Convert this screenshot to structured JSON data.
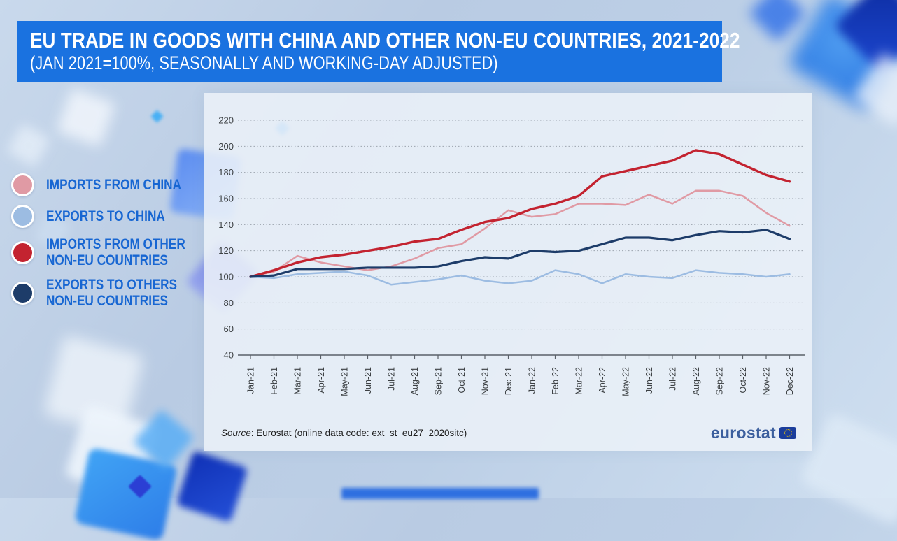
{
  "header": {
    "title": "EU TRADE IN GOODS WITH CHINA AND OTHER NON-EU COUNTRIES, 2021-2022",
    "subtitle": "(JAN 2021=100%, SEASONALLY AND WORKING-DAY ADJUSTED)",
    "bar_color": "#1a72e0"
  },
  "legend": {
    "text_color": "#1766d2",
    "items": [
      {
        "lines": [
          "IMPORTS FROM CHINA"
        ]
      },
      {
        "lines": [
          "EXPORTS TO CHINA"
        ]
      },
      {
        "lines": [
          "IMPORTS FROM OTHER",
          "NON-EU COUNTRIES"
        ]
      },
      {
        "lines": [
          "EXPORTS TO OTHERS",
          "NON-EU COUNTRIES"
        ]
      }
    ]
  },
  "chart_data": {
    "type": "line",
    "title": "EU trade in goods with China and other non-EU countries, 2021-2022",
    "subtitle": "Jan 2021=100%, seasonally and working-day adjusted",
    "categories": [
      "Jan-21",
      "Feb-21",
      "Mar-21",
      "Apr-21",
      "May-21",
      "Jun-21",
      "Jul-21",
      "Aug-21",
      "Sep-21",
      "Oct-21",
      "Nov-21",
      "Dec-21",
      "Jan-22",
      "Feb-22",
      "Mar-22",
      "Apr-22",
      "May-22",
      "Jun-22",
      "Jul-22",
      "Aug-22",
      "Sep-22",
      "Oct-22",
      "Nov-22",
      "Dec-22"
    ],
    "ylim": [
      40,
      220
    ],
    "yticks": [
      40,
      60,
      80,
      100,
      120,
      140,
      160,
      180,
      200,
      220
    ],
    "grid": "horizontal-dotted",
    "legend_position": "outside-left",
    "series": [
      {
        "name": "IMPORTS FROM CHINA",
        "color": "#e09aa4",
        "values": [
          100,
          104,
          116,
          111,
          108,
          105,
          108,
          114,
          122,
          125,
          137,
          151,
          146,
          148,
          156,
          156,
          155,
          163,
          156,
          166,
          166,
          162,
          149,
          139
        ]
      },
      {
        "name": "EXPORTS TO CHINA",
        "color": "#9cbce2",
        "values": [
          100,
          99,
          102,
          103,
          104,
          101,
          94,
          96,
          98,
          101,
          97,
          95,
          97,
          105,
          102,
          95,
          102,
          100,
          99,
          105,
          103,
          102,
          100,
          102
        ]
      },
      {
        "name": "IMPORTS FROM OTHER NON-EU COUNTRIES",
        "color": "#c32330",
        "values": [
          100,
          105,
          111,
          115,
          117,
          120,
          123,
          127,
          129,
          136,
          142,
          145,
          152,
          156,
          162,
          177,
          181,
          185,
          189,
          197,
          194,
          186,
          178,
          173
        ]
      },
      {
        "name": "EXPORTS TO OTHERS NON-EU COUNTRIES",
        "color": "#1d3c69",
        "values": [
          100,
          101,
          106,
          106,
          106,
          107,
          107,
          107,
          108,
          112,
          115,
          114,
          120,
          119,
          120,
          125,
          130,
          130,
          128,
          132,
          135,
          134,
          136,
          129
        ]
      }
    ]
  },
  "footer": {
    "source_prefix": "Source",
    "source_rest": ": Eurostat (online data code: ext_st_eu27_2020sitc)",
    "logo_text": "eurostat",
    "logo_flag_color": "#1b3d9b"
  }
}
